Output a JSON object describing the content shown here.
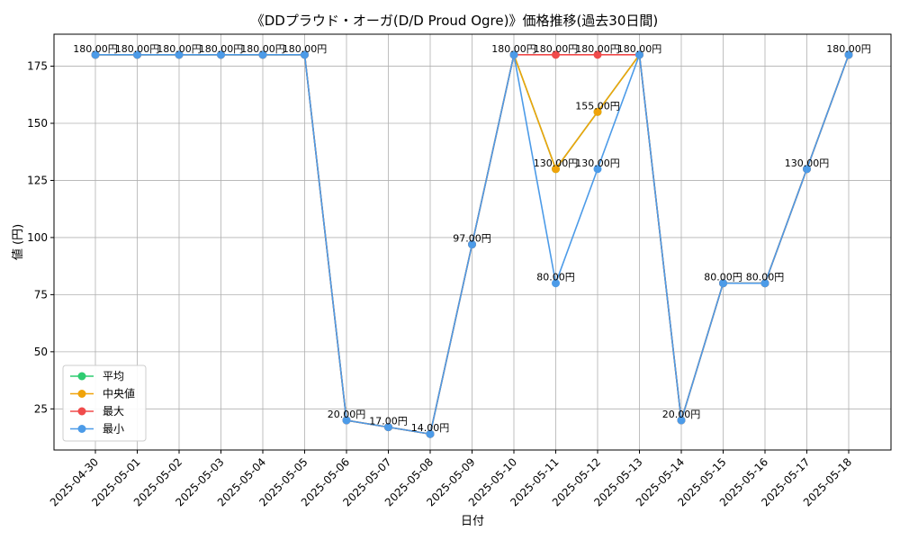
{
  "chart_data": {
    "type": "line",
    "title": "《DDプラウド・オーガ(D/D Proud Ogre)》価格推移(過去30日間)",
    "xlabel": "日付",
    "ylabel": "値 (円)",
    "ylim": [
      7,
      189
    ],
    "yticks": [
      25,
      50,
      75,
      100,
      125,
      150,
      175
    ],
    "grid": true,
    "legend_position": "lower-left",
    "label_suffix": "円",
    "categories": [
      "2025-04-30",
      "2025-05-01",
      "2025-05-02",
      "2025-05-03",
      "2025-05-04",
      "2025-05-05",
      "2025-05-06",
      "2025-05-07",
      "2025-05-08",
      "2025-05-09",
      "2025-05-10",
      "2025-05-11",
      "2025-05-12",
      "2025-05-13",
      "2025-05-14",
      "2025-05-15",
      "2025-05-16",
      "2025-05-17",
      "2025-05-18"
    ],
    "series": [
      {
        "name": "平均",
        "color": "#2ecc71",
        "values": [
          180,
          180,
          180,
          180,
          180,
          180,
          20,
          17,
          14,
          97,
          180,
          130,
          155,
          180,
          20,
          80,
          80,
          130,
          180
        ]
      },
      {
        "name": "中央値",
        "color": "#f0a30a",
        "values": [
          180,
          180,
          180,
          180,
          180,
          180,
          20,
          17,
          14,
          97,
          180,
          130,
          155,
          180,
          20,
          80,
          80,
          130,
          180
        ]
      },
      {
        "name": "最大",
        "color": "#f04b4b",
        "values": [
          180,
          180,
          180,
          180,
          180,
          180,
          20,
          17,
          14,
          97,
          180,
          180,
          180,
          180,
          20,
          80,
          80,
          130,
          180
        ]
      },
      {
        "name": "最小",
        "color": "#4c9be8",
        "values": [
          180,
          180,
          180,
          180,
          180,
          180,
          20,
          17,
          14,
          97,
          180,
          80,
          130,
          180,
          20,
          80,
          80,
          130,
          180
        ]
      }
    ],
    "data_labels": [
      {
        "i": 0,
        "v": 180,
        "text": "180.00円"
      },
      {
        "i": 1,
        "v": 180,
        "text": "180.00円"
      },
      {
        "i": 2,
        "v": 180,
        "text": "180.00円"
      },
      {
        "i": 3,
        "v": 180,
        "text": "180.00円"
      },
      {
        "i": 4,
        "v": 180,
        "text": "180.00円"
      },
      {
        "i": 5,
        "v": 180,
        "text": "180.00円"
      },
      {
        "i": 6,
        "v": 20,
        "text": "20.00円"
      },
      {
        "i": 7,
        "v": 17,
        "text": "17.00円"
      },
      {
        "i": 8,
        "v": 14,
        "text": "14.00円"
      },
      {
        "i": 9,
        "v": 97,
        "text": "97.00円"
      },
      {
        "i": 10,
        "v": 180,
        "text": "180.00円"
      },
      {
        "i": 11,
        "v": 180,
        "text": "180.00円"
      },
      {
        "i": 11,
        "v": 130,
        "text": "130.00円"
      },
      {
        "i": 11,
        "v": 80,
        "text": "80.00円"
      },
      {
        "i": 12,
        "v": 180,
        "text": "180.00円"
      },
      {
        "i": 12,
        "v": 155,
        "text": "155.00円"
      },
      {
        "i": 12,
        "v": 130,
        "text": "130.00円"
      },
      {
        "i": 13,
        "v": 180,
        "text": "180.00円"
      },
      {
        "i": 14,
        "v": 20,
        "text": "20.00円"
      },
      {
        "i": 15,
        "v": 80,
        "text": "80.00円"
      },
      {
        "i": 16,
        "v": 80,
        "text": "80.00円"
      },
      {
        "i": 17,
        "v": 130,
        "text": "130.00円"
      },
      {
        "i": 18,
        "v": 180,
        "text": "180.00円"
      }
    ]
  }
}
